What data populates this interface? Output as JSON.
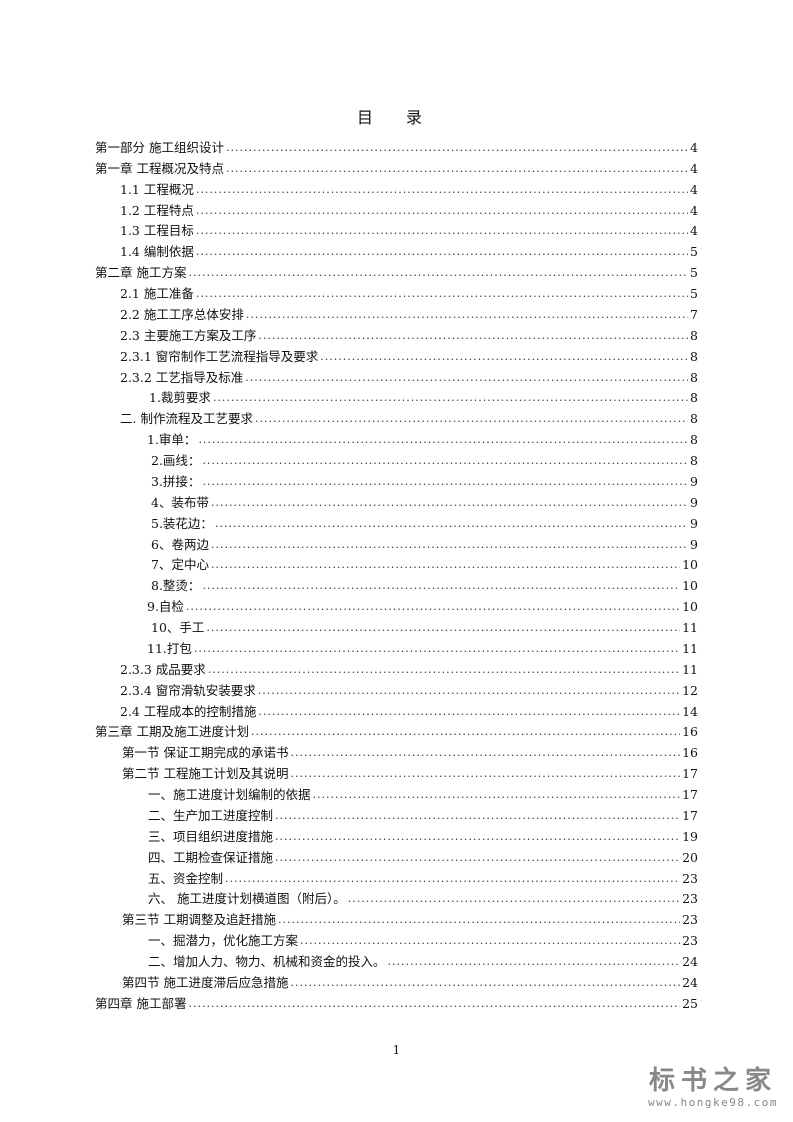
{
  "title": "目 录",
  "entries": [
    {
      "label": "第一部分  施工组织设计",
      "page": "4",
      "indent": 0
    },
    {
      "label": "第一章    工程概况及特点",
      "page": "4",
      "indent": 0
    },
    {
      "label": "1.1 工程概况",
      "page": "4",
      "indent": 25
    },
    {
      "label": "1.2 工程特点",
      "page": "4",
      "indent": 25
    },
    {
      "label": "1.3 工程目标",
      "page": "4",
      "indent": 25
    },
    {
      "label": "1.4 编制依据",
      "page": "5",
      "indent": 25
    },
    {
      "label": "第二章    施工方案",
      "page": "5",
      "indent": 0
    },
    {
      "label": "2.1 施工准备",
      "page": "5",
      "indent": 25
    },
    {
      "label": "2.2 施工工序总体安排",
      "page": "7",
      "indent": 25
    },
    {
      "label": "2.3 主要施工方案及工序",
      "page": "8",
      "indent": 25
    },
    {
      "label": "2.3.1 窗帘制作工艺流程指导及要求",
      "page": "8",
      "indent": 25
    },
    {
      "label": "2.3.2 工艺指导及标准",
      "page": "8",
      "indent": 25
    },
    {
      "label": "1.裁剪要求",
      "page": "8",
      "indent": 54
    },
    {
      "label": "二. 制作流程及工艺要求",
      "page": "8",
      "indent": 25
    },
    {
      "label": "1.审单：",
      "page": "8",
      "indent": 52
    },
    {
      "label": "2.画线：",
      "page": "8",
      "indent": 56
    },
    {
      "label": "3.拼接：",
      "page": "9",
      "indent": 56
    },
    {
      "label": "4、装布带",
      "page": "9",
      "indent": 56
    },
    {
      "label": "5.装花边：",
      "page": "9",
      "indent": 56
    },
    {
      "label": "6、卷两边",
      "page": "9",
      "indent": 56
    },
    {
      "label": "7、定中心",
      "page": "10",
      "indent": 56
    },
    {
      "label": "8.整烫：",
      "page": "10",
      "indent": 56
    },
    {
      "label": "9.自检",
      "page": "10",
      "indent": 52
    },
    {
      "label": "10、手工",
      "page": "11",
      "indent": 56
    },
    {
      "label": "11.打包",
      "page": "11",
      "indent": 52
    },
    {
      "label": "2.3.3 成品要求",
      "page": "11",
      "indent": 25
    },
    {
      "label": "2.3.4 窗帘滑轨安装要求",
      "page": "12",
      "indent": 25
    },
    {
      "label": "2.4 工程成本的控制措施",
      "page": "14",
      "indent": 25
    },
    {
      "label": "第三章    工期及施工进度计划",
      "page": "16",
      "indent": 0
    },
    {
      "label": "第一节    保证工期完成的承诺书",
      "page": "16",
      "indent": 27
    },
    {
      "label": "第二节    工程施工计划及其说明",
      "page": "17",
      "indent": 27
    },
    {
      "label": "一、施工进度计划编制的依据",
      "page": "17",
      "indent": 53
    },
    {
      "label": "二、生产加工进度控制",
      "page": "17",
      "indent": 53
    },
    {
      "label": "三、项目组织进度措施",
      "page": "19",
      "indent": 53
    },
    {
      "label": "四、工期检查保证措施",
      "page": "20",
      "indent": 53
    },
    {
      "label": "五、资金控制",
      "page": "23",
      "indent": 53
    },
    {
      "label": "六、  施工进度计划横道图（附后）。",
      "page": "23",
      "indent": 53
    },
    {
      "label": "第三节    工期调整及追赶措施",
      "page": "23",
      "indent": 27
    },
    {
      "label": "一、掘潜力，优化施工方案",
      "page": "23",
      "indent": 53
    },
    {
      "label": "二、增加人力、物力、机械和资金的投入。",
      "page": "24",
      "indent": 53
    },
    {
      "label": "第四节    施工进度滞后应急措施",
      "page": "24",
      "indent": 27
    },
    {
      "label": "第四章    施工部署",
      "page": "25",
      "indent": 0
    }
  ],
  "page_number": "1",
  "watermark": {
    "title": "标书之家",
    "url": "www.hongke98.com"
  }
}
